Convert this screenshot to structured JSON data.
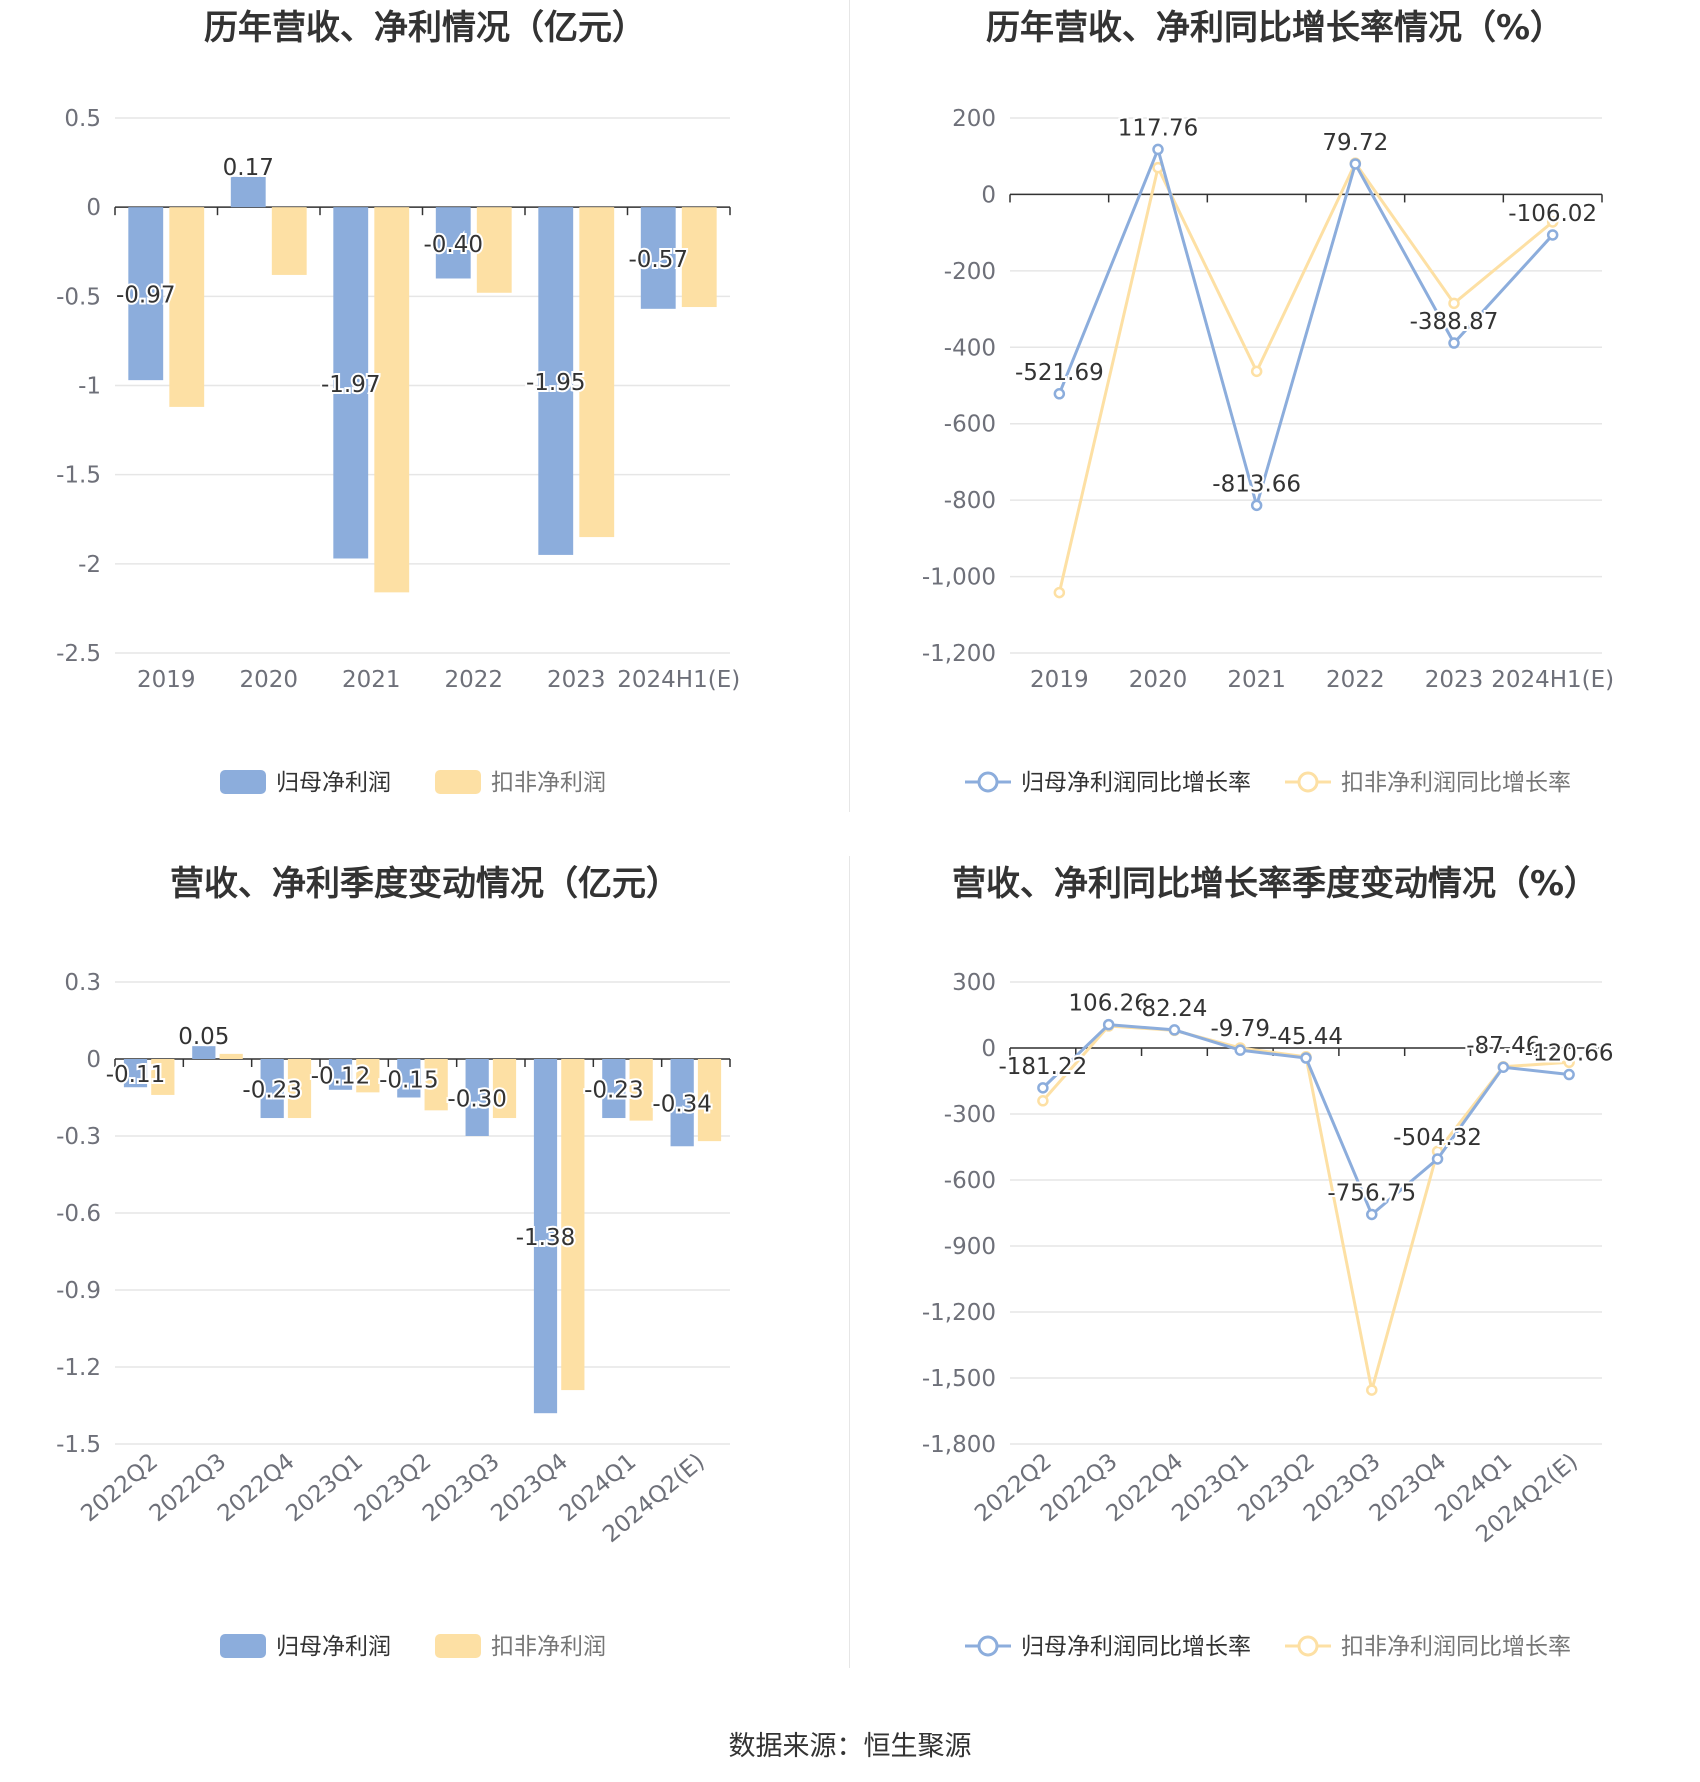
{
  "colors": {
    "primary": "#8caddc",
    "secondary": "#fde0a4",
    "grid": "#e6e6e6",
    "axis": "#333333",
    "tick_text": "#6e7079",
    "label_text": "#333333"
  },
  "footer": {
    "source": "数据来源：恒生聚源"
  },
  "chart_data": [
    {
      "type": "bar",
      "title": "历年营收、净利情况（亿元）",
      "categories": [
        "2019",
        "2020",
        "2021",
        "2022",
        "2023",
        "2024H1(E)"
      ],
      "yticks": [
        "0.5",
        "0",
        "-0.5",
        "-1",
        "-1.5",
        "-2",
        "-2.5"
      ],
      "ylim": [
        -2.5,
        0.5
      ],
      "grid": true,
      "legend_position": "bottom",
      "series": [
        {
          "name": "归母净利润",
          "values": [
            -0.97,
            0.17,
            -1.97,
            -0.4,
            -1.95,
            -0.57
          ],
          "labels": [
            "-0.97",
            "0.17",
            "-1.97",
            "-0.40",
            "-1.95",
            "-0.57"
          ]
        },
        {
          "name": "扣非净利润",
          "values": [
            -1.12,
            -0.38,
            -2.16,
            -0.48,
            -1.85,
            -0.56
          ]
        }
      ]
    },
    {
      "type": "line",
      "title": "历年营收、净利同比增长率情况（%）",
      "categories": [
        "2019",
        "2020",
        "2021",
        "2022",
        "2023",
        "2024H1(E)"
      ],
      "yticks": [
        "200",
        "0",
        "-200",
        "-400",
        "-600",
        "-800",
        "-1,000",
        "-1,200"
      ],
      "ylim": [
        -1200,
        200
      ],
      "grid": true,
      "legend_position": "bottom",
      "series": [
        {
          "name": "归母净利润同比增长率",
          "values": [
            -521.69,
            117.76,
            -813.66,
            79.72,
            -388.87,
            -106.02
          ],
          "labels": [
            "-521.69",
            "117.76",
            "-813.66",
            "79.72",
            "-388.87",
            "-106.02"
          ]
        },
        {
          "name": "扣非净利润同比增长率",
          "values": [
            -1042,
            70,
            -463,
            82,
            -285,
            -72
          ]
        }
      ]
    },
    {
      "type": "bar",
      "title": "营收、净利季度变动情况（亿元）",
      "categories": [
        "2022Q2",
        "2022Q3",
        "2022Q4",
        "2023Q1",
        "2023Q2",
        "2023Q3",
        "2023Q4",
        "2024Q1",
        "2024Q2(E)"
      ],
      "yticks": [
        "0.3",
        "0",
        "-0.3",
        "-0.6",
        "-0.9",
        "-1.2",
        "-1.5"
      ],
      "ylim": [
        -1.5,
        0.3
      ],
      "grid": true,
      "legend_position": "bottom",
      "series": [
        {
          "name": "归母净利润",
          "values": [
            -0.11,
            0.05,
            -0.23,
            -0.12,
            -0.15,
            -0.3,
            -1.38,
            -0.23,
            -0.34
          ],
          "labels": [
            "-0.11",
            "0.05",
            "-0.23",
            "-0.12",
            "-0.15",
            "-0.30",
            "-1.38",
            "-0.23",
            "-0.34"
          ]
        },
        {
          "name": "扣非净利润",
          "values": [
            -0.14,
            0.02,
            -0.23,
            -0.13,
            -0.2,
            -0.23,
            -1.29,
            -0.24,
            -0.32
          ]
        }
      ]
    },
    {
      "type": "line",
      "title": "营收、净利同比增长率季度变动情况（%）",
      "categories": [
        "2022Q2",
        "2022Q3",
        "2022Q4",
        "2023Q1",
        "2023Q2",
        "2023Q3",
        "2023Q4",
        "2024Q1",
        "2024Q2(E)"
      ],
      "yticks": [
        "300",
        "0",
        "-300",
        "-600",
        "-900",
        "-1,200",
        "-1,500",
        "-1,800"
      ],
      "ylim": [
        -1800,
        300
      ],
      "grid": true,
      "legend_position": "bottom",
      "series": [
        {
          "name": "归母净利润同比增长率",
          "values": [
            -181.22,
            106.26,
            82.24,
            -9.79,
            -45.44,
            -756.75,
            -504.32,
            -87.46,
            -120.66
          ],
          "labels": [
            "-181.22",
            "106.26",
            "82.24",
            "-9.79",
            "-45.44",
            "-756.75",
            "-504.32",
            "-87.46",
            "-120.66"
          ]
        },
        {
          "name": "扣非净利润同比增长率",
          "values": [
            -240,
            100,
            80,
            0,
            -40,
            -1555,
            -470,
            -85,
            -65
          ]
        }
      ]
    }
  ]
}
